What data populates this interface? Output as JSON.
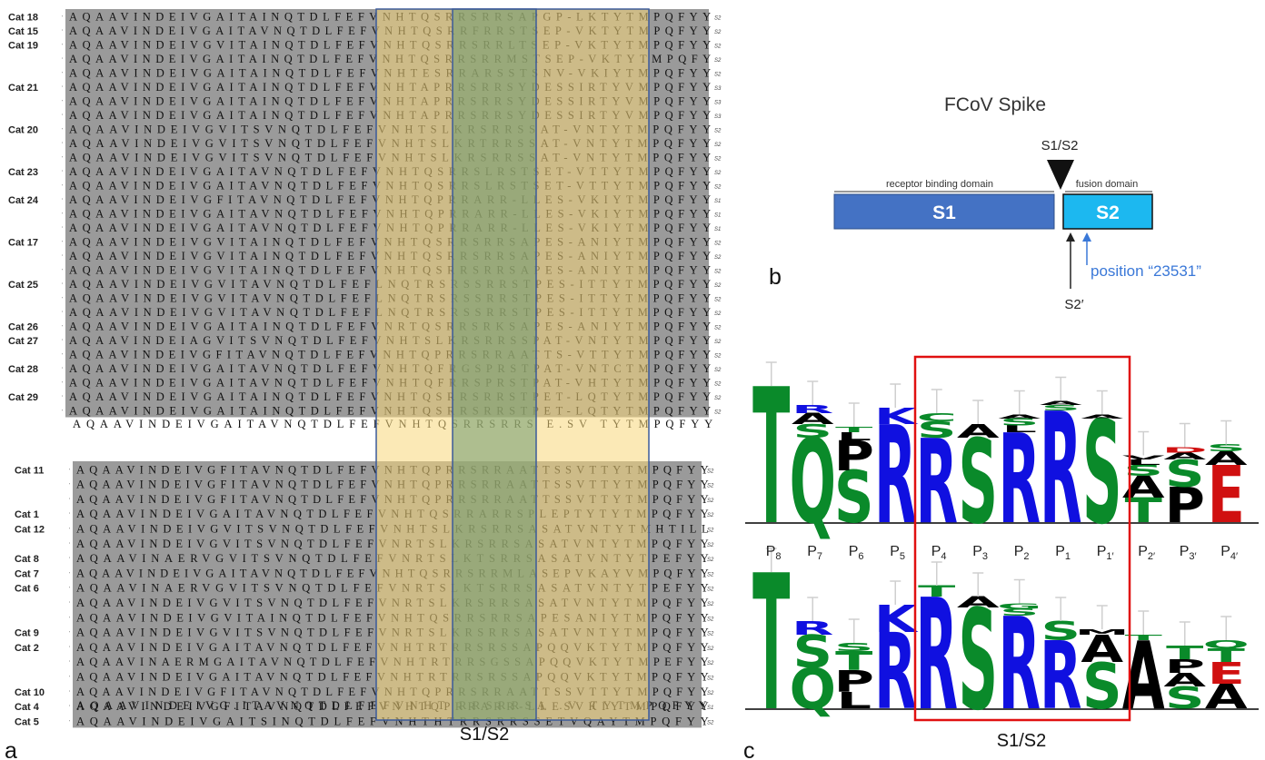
{
  "panel_a": {
    "label": "a",
    "region_label": "S1/S2",
    "block1": {
      "rows": [
        {
          "cat": "Cat 18",
          "seq": "AQAAVINDEIVGAITAINQTDLFEFVNHTQSRRSRRSAPGP-LKTYTMPQFYY",
          "tag": "S2"
        },
        {
          "cat": "Cat 15",
          "seq": "AQAAVINDEIVGAITAVNQTDLFEFVNHTQSRRFRRSTSEP-VKTYTMPQFYY",
          "tag": "S2"
        },
        {
          "cat": "Cat 19",
          "seq": "AQAAVINDEIVGVITAINQTDLFEFVNHTQSRRSRRLTSEP-VKTYTMPQFYY",
          "tag": "S2"
        },
        {
          "cat": "",
          "seq": "AQAAVINDEIVGAITAINQTDLFEFVNHTQSRRSRRMSTSEP-VKTYTMPQFY",
          "tag": "S2"
        },
        {
          "cat": "",
          "seq": "AQAAVINDEIVGAITAINQTDLFEFVNHTESRRARSSTSNV-VKIYTMPQFYY",
          "tag": "S2"
        },
        {
          "cat": "Cat 21",
          "seq": "AQAAVINDEIVGAITAINQTDLFEFVNHTAPRRSRRSYDESSIRTYVMPQFYY",
          "tag": "S3"
        },
        {
          "cat": "",
          "seq": "AQAAVINDEIVGAITAINQTDLFEFVNHTAPRRSRRSYDESSIRTYVMPQFYY",
          "tag": "S3"
        },
        {
          "cat": "",
          "seq": "AQAAVINDEIVGAITAINQTDLFEFVNHTAPRRSRRSYDESSIRTYVMPQFYY",
          "tag": "S3"
        },
        {
          "cat": "Cat 20",
          "seq": "AQAAVINDEIVGVITSVNQTDLFEFVNHTSLKRSRRSSAT-VNTYTMPQFYY",
          "tag": "S2"
        },
        {
          "cat": "",
          "seq": "AQAAVINDEIVGVITSVNQTDLFEFVNHTSLKRTRRSSAT-VNTYTMPQFYY",
          "tag": "S2"
        },
        {
          "cat": "",
          "seq": "AQAAVINDEIVGVITSVNQTDLFEFVNHTSLKRSRRSSAT-VNTYTMPQFYY",
          "tag": "S2"
        },
        {
          "cat": "Cat 23",
          "seq": "AQAAVINDEIVGAITAVNQTDLFEFVNHTQSRRSLRSTSET-VTTYTMPQFYY",
          "tag": "S2"
        },
        {
          "cat": "",
          "seq": "AQAAVINDEIVGAITAVNQTDLFEFVNHTQSRRSLRSTSET-VTTYTMPQFYY",
          "tag": "S2"
        },
        {
          "cat": "Cat 24",
          "seq": "AQAAVINDEIVGFITAVNQTDLFEFVNHTQPRRARR-LLES-VKIYTMPQFYY",
          "tag": "S1"
        },
        {
          "cat": "",
          "seq": "AQAAVINDEIVGAITAVNQTDLFEFVNHTQPRRARR-LLES-VKIYTMPQFYY",
          "tag": "S1"
        },
        {
          "cat": "",
          "seq": "AQAAVINDEIVGAITAVNQTDLFEFVNHTQPRRARR-LLES-VKIYTMPQFYY",
          "tag": "S1"
        },
        {
          "cat": "Cat 17",
          "seq": "AQAAVINDEIVGVITAINQTDLFEFVNHTQSRRSRRSAPES-ANIYTMPQFYY",
          "tag": "S2"
        },
        {
          "cat": "",
          "seq": "AQAAVINDEIVGVITAINQTDLFEFVNHTQSRRSRRSAPES-ANIYTMPQFYY",
          "tag": "S2"
        },
        {
          "cat": "",
          "seq": "AQAAVINDEIVGVITAINQTDLFEFVNHTQSRRSRRSAPES-ANIYTMPQFYY",
          "tag": "S2"
        },
        {
          "cat": "Cat 25",
          "seq": "AQAAVINDEIVGVITAVNQTDLFEFLNQTRSRSSRRSTPES-ITTYTMPQFYY",
          "tag": "S2"
        },
        {
          "cat": "",
          "seq": "AQAAVINDEIVGVITAVNQTDLFEFLNQTRSRSSRRSTPES-ITTYTMPQFYY",
          "tag": "S2"
        },
        {
          "cat": "",
          "seq": "AQAAVINDEIVGVITAVNQTDLFEFLNQTRSRSSRRSTPES-ITTYTMPQFYY",
          "tag": "S2"
        },
        {
          "cat": "Cat 26",
          "seq": "AQAAVINDEIVGAITAINQTDLFEFVNRTQSRRSRKSAPES-ANIYTMPQFYY",
          "tag": "S2"
        },
        {
          "cat": "Cat 27",
          "seq": "AQAAVINDEIAGVITSVNQTDLFEFVNHTSLKRSRRSSPAT-VNTYTMPQFYY",
          "tag": "S2"
        },
        {
          "cat": "",
          "seq": "AQAAVINDEIVGFITAVNQTDLFEFVNHTQPRRSRRAATTS-VTTYTMPQFYY",
          "tag": "S2"
        },
        {
          "cat": "Cat 28",
          "seq": "AQAAVINDEIVGAITAVNQTDLFEFVNHTQFRGSPRSTPAT-VNTCTMPQFYY",
          "tag": "S2"
        },
        {
          "cat": "",
          "seq": "AQAAVINDEIVGAITAVNQTDLFEFVNHTQFRRSPRSTPAT-VHTYTMPQFYY",
          "tag": "S2"
        },
        {
          "cat": "Cat 29",
          "seq": "AQAAVINDEIVGAITAINQTDLFEFVNHTQSRRSRRSTPET-LQTYTMPQFYY",
          "tag": "S2"
        },
        {
          "cat": "",
          "seq": "AQAAVINDEIVGAITAINQTDLFEFVNHTQSRRSRRSTPET-LQTYTMPQFYY",
          "tag": "S2"
        }
      ],
      "consensus": "AQAAVINDEIVGAITAVNQTDLFEFVNHTQSRRSRRS E.SV TYTMPQFYY"
    },
    "block2": {
      "rows": [
        {
          "cat": "Cat 11",
          "seq": "AQAAVINDEIVGFITAVNQTDLFEFVNHTQPRRSRRAATTSSVTTYTMPQFYY",
          "tag": "S2"
        },
        {
          "cat": "",
          "seq": "AQAAVINDEIVGFITAVNQTDLFEFVNHTQPRRSRRAATTSSVTTYTMPQFYY",
          "tag": "S2"
        },
        {
          "cat": "",
          "seq": "AQAAVINDEIVGFITAVNQTDLFEFVNHTQPRRSRRAATTSSVTTYTMPQFYY",
          "tag": "S2"
        },
        {
          "cat": "Cat 1",
          "seq": "AQAAVINDEIVGAITAVNQTDLFEFVNHTQSRRARRSPLEPTYTYTMPQFYY",
          "tag": "S2"
        },
        {
          "cat": "Cat 12",
          "seq": "AQAAVINDEIVGVITSVNQTDLFEFVNHTSLKRSRRSASATVNTYTMHTILL",
          "tag": "S2"
        },
        {
          "cat": "",
          "seq": "AQAAVINDEIVGVITSVNQTDLFEFVNRTSLKRSRRSASATVNTYTMPQFYY",
          "tag": "S2"
        },
        {
          "cat": "Cat 8",
          "seq": "AQAAVINAERVGVITSVNQTDLFEFVNRTSLKTSRRSASATVNTYTPEFYY",
          "tag": "S2"
        },
        {
          "cat": "Cat 7",
          "seq": "AQAAVINDEIVGAITAVNQTDLFEFVNHTQSRRSRRMLASEPVKAYVMPQFYY",
          "tag": "S2"
        },
        {
          "cat": "Cat 6",
          "seq": "AQAAVINAERVGVITSVNQTDLFEFVNRTSLKTSRRSASATVNTYTPEFYY",
          "tag": "S2"
        },
        {
          "cat": "",
          "seq": "AQAAVINDEIVGVITSVNQTDLFEFVNRTSLKRSRRSASATVNTYTMPQFYY",
          "tag": "S2"
        },
        {
          "cat": "",
          "seq": "AQAAVINDEIVGVITAINQTDLFEFVNHTQSRRSRRSAPESANIYTMPQFYY",
          "tag": "S2"
        },
        {
          "cat": "Cat 9",
          "seq": "AQAAVINDEIVGVITSVNQTDLFEFVNRTSLKRSRRSASATVNTYTMPQFYY",
          "tag": "S2"
        },
        {
          "cat": "Cat 2",
          "seq": "AQAAVINDEIVGAITAVNQTDLFEFVNHTRTRRSRSSAPQQVKTYTMPQFYY",
          "tag": "S2"
        },
        {
          "cat": "",
          "seq": "AQAAVINAERMGAITAVNQTDLFEFVNHTRTRRSGSSAPQQVKTYTMPEFYY",
          "tag": "S2"
        },
        {
          "cat": "",
          "seq": "AQAAVINDEIVGAITAVNQTDLFEFVNHTRTRRSRSSAPQQVKTYTMPQFYY",
          "tag": "S2"
        },
        {
          "cat": "Cat 10",
          "seq": "AQAAVINDEIVGFITAVNQTDLFEFVNHTQPRRSRRAATTSSVTTYTMPQFYY",
          "tag": "S2"
        },
        {
          "cat": "Cat 4",
          "seq": "AQAAVINDEIVGFITAVNQTDLFEFVNHTQPRRARR-LLESVKIYTMPQFYY",
          "tag": "S1"
        },
        {
          "cat": "Cat 5",
          "seq": "AQAAVINDEIVGAITSINQTDLFEFVNHTHTRRSRRSSETVQAYTMPQFYY",
          "tag": "S2"
        }
      ],
      "consensus": "AQAAVINDEIVG.ITAVNQTDLFEFVNHT RRSRRSA .V TYTMPQFYY"
    }
  },
  "panel_b": {
    "label": "b",
    "title": "FCoV Spike",
    "cleavage_label": "S1/S2",
    "left_domain_label": "receptor binding domain",
    "right_domain_label": "fusion domain",
    "left_box": "S1",
    "right_box": "S2",
    "position_label": "position “23531”",
    "s2prime_label": "S2′",
    "colors": {
      "s1": "#4472c4",
      "s2": "#1cb8f0",
      "position": "#3a78d8"
    }
  },
  "panel_c": {
    "label": "c",
    "region_label": "S1/S2",
    "positions": [
      "P8",
      "P7",
      "P6",
      "P5",
      "P4",
      "P3",
      "P2",
      "P1",
      "P1′",
      "P2′",
      "P3′",
      "P4′"
    ],
    "logo1": [
      [
        {
          "l": "T",
          "h": 1.0
        }
      ],
      [
        {
          "l": "Q",
          "h": 0.62
        },
        {
          "l": "S",
          "h": 0.1
        },
        {
          "l": "A",
          "h": 0.08
        },
        {
          "l": "R",
          "h": 0.06
        }
      ],
      [
        {
          "l": "S",
          "h": 0.38
        },
        {
          "l": "P",
          "h": 0.22
        },
        {
          "l": "L",
          "h": 0.06
        },
        {
          "l": "T",
          "h": 0.04
        }
      ],
      [
        {
          "l": "R",
          "h": 0.72
        },
        {
          "l": "K",
          "h": 0.12
        }
      ],
      [
        {
          "l": "R",
          "h": 0.62
        },
        {
          "l": "S",
          "h": 0.12
        },
        {
          "l": "C",
          "h": 0.06
        }
      ],
      [
        {
          "l": "S",
          "h": 0.62
        },
        {
          "l": "A",
          "h": 0.1
        }
      ],
      [
        {
          "l": "R",
          "h": 0.66
        },
        {
          "l": "L",
          "h": 0.05
        },
        {
          "l": "S",
          "h": 0.05
        },
        {
          "l": "A",
          "h": 0.03
        }
      ],
      [
        {
          "l": "R",
          "h": 0.82
        },
        {
          "l": "S",
          "h": 0.04
        },
        {
          "l": "A",
          "h": 0.03
        }
      ],
      [
        {
          "l": "S",
          "h": 0.76
        },
        {
          "l": "A",
          "h": 0.03
        }
      ],
      [
        {
          "l": "T",
          "h": 0.18
        },
        {
          "l": "A",
          "h": 0.16
        },
        {
          "l": "S",
          "h": 0.08
        },
        {
          "l": "L",
          "h": 0.04
        },
        {
          "l": "V",
          "h": 0.03
        }
      ],
      [
        {
          "l": "P",
          "h": 0.26
        },
        {
          "l": "S",
          "h": 0.2
        },
        {
          "l": "A",
          "h": 0.05
        },
        {
          "l": "D",
          "h": 0.04
        }
      ],
      [
        {
          "l": "E",
          "h": 0.42
        },
        {
          "l": "A",
          "h": 0.1
        },
        {
          "l": "S",
          "h": 0.05
        }
      ]
    ],
    "logo2": [
      [
        {
          "l": "T",
          "h": 1.0
        }
      ],
      [
        {
          "l": "Q",
          "h": 0.3
        },
        {
          "l": "S",
          "h": 0.24
        },
        {
          "l": "R",
          "h": 0.1
        }
      ],
      [
        {
          "l": "L",
          "h": 0.12
        },
        {
          "l": "P",
          "h": 0.16
        },
        {
          "l": "T",
          "h": 0.14
        },
        {
          "l": "S",
          "h": 0.06
        }
      ],
      [
        {
          "l": "R",
          "h": 0.56
        },
        {
          "l": "K",
          "h": 0.2
        }
      ],
      [
        {
          "l": "R",
          "h": 0.82
        },
        {
          "l": "T",
          "h": 0.08
        }
      ],
      [
        {
          "l": "S",
          "h": 0.74
        },
        {
          "l": "A",
          "h": 0.08
        }
      ],
      [
        {
          "l": "R",
          "h": 0.68
        },
        {
          "l": "S",
          "h": 0.05
        },
        {
          "l": "G",
          "h": 0.04
        }
      ],
      [
        {
          "l": "R",
          "h": 0.5
        },
        {
          "l": "S",
          "h": 0.14
        }
      ],
      [
        {
          "l": "S",
          "h": 0.34
        },
        {
          "l": "A",
          "h": 0.2
        },
        {
          "l": "M",
          "h": 0.04
        }
      ],
      [
        {
          "l": "A",
          "h": 0.5
        },
        {
          "l": "T",
          "h": 0.04
        }
      ],
      [
        {
          "l": "S",
          "h": 0.16
        },
        {
          "l": "A",
          "h": 0.1
        },
        {
          "l": "P",
          "h": 0.1
        },
        {
          "l": "T",
          "h": 0.1
        }
      ],
      [
        {
          "l": "A",
          "h": 0.18
        },
        {
          "l": "E",
          "h": 0.16
        },
        {
          "l": "T",
          "h": 0.1
        },
        {
          "l": "Q",
          "h": 0.06
        }
      ]
    ]
  }
}
